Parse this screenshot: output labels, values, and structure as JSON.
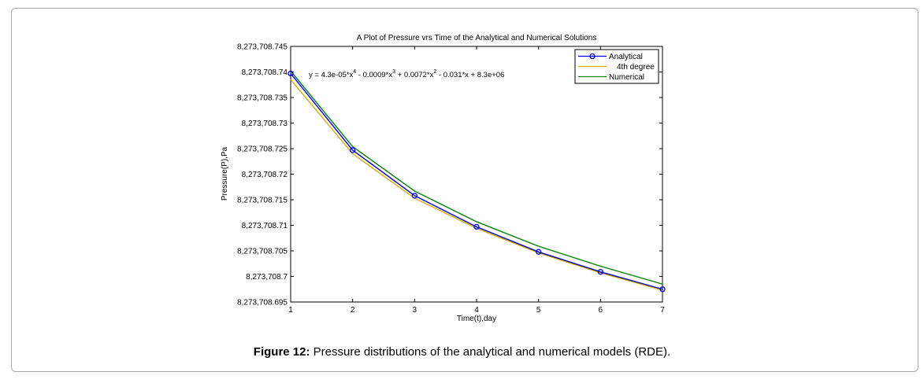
{
  "figure": {
    "caption_label": "Figure 12:",
    "caption_text": " Pressure distributions of the analytical and numerical models (RDE)."
  },
  "chart_data": {
    "type": "line",
    "title": "A Plot of Pressure vrs Time of the Analytical and Numerical Solutions",
    "xlabel": "Time(t),day",
    "ylabel": "Pressure(P),Pa",
    "xlim": [
      1,
      7
    ],
    "ylim": [
      8273708.695,
      8273708.745
    ],
    "x_ticks": [
      1,
      2,
      3,
      4,
      5,
      6,
      7
    ],
    "x_tick_labels": [
      "1",
      "2",
      "3",
      "4",
      "5",
      "6",
      "7"
    ],
    "y_ticks": [
      8273708.695,
      8273708.7,
      8273708.705,
      8273708.71,
      8273708.715,
      8273708.72,
      8273708.725,
      8273708.73,
      8273708.735,
      8273708.74,
      8273708.745
    ],
    "y_tick_labels": [
      "8,273,708.695",
      "8,273,708.7",
      "8,273,708.705",
      "8,273,708.71",
      "8,273,708.715",
      "8,273,708.72",
      "8,273,708.725",
      "8,273,708.73",
      "8,273,708.735",
      "8,273,708.74",
      "8,273,708.745"
    ],
    "grid": false,
    "legend_position": "top-right",
    "annotation": {
      "parts": [
        "y = 4.3e-05*x",
        "4",
        " - 0.0009*x",
        "3",
        " + 0.0072*x",
        "2",
        " - 0.031*x + 8.3e+06"
      ]
    },
    "x": [
      1,
      2,
      3,
      4,
      5,
      6,
      7
    ],
    "series": [
      {
        "name": "Analytical",
        "color": "#0000ff",
        "marker": "circle",
        "values": [
          8273708.7397,
          8273708.7247,
          8273708.7158,
          8273708.7097,
          8273708.7048,
          8273708.7009,
          8273708.6975
        ]
      },
      {
        "name": "4th degree",
        "color": "#d4b000",
        "marker": "none",
        "values": [
          8273708.7385,
          8273708.724,
          8273708.7153,
          8273708.7094,
          8273708.7046,
          8273708.7007,
          8273708.6973
        ]
      },
      {
        "name": "Numerical",
        "color": "#008000",
        "marker": "none",
        "values": [
          8273708.7402,
          8273708.7254,
          8273708.7167,
          8273708.7107,
          8273708.7059,
          8273708.702,
          8273708.6985
        ]
      }
    ]
  }
}
